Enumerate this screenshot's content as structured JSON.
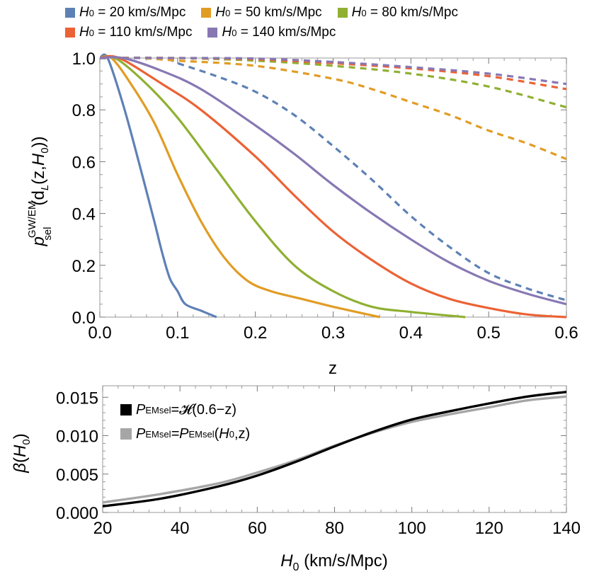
{
  "chart_data": [
    {
      "type": "line",
      "title": "",
      "xlabel": "z",
      "ylabel": "p_sel^{GW/EM}(d_L(z,H_0))",
      "xlim": [
        0.0,
        0.6
      ],
      "ylim": [
        0.0,
        1.0
      ],
      "xticks": [
        "0.0",
        "0.1",
        "0.2",
        "0.3",
        "0.4",
        "0.5",
        "0.6"
      ],
      "yticks": [
        "0.0",
        "0.2",
        "0.4",
        "0.6",
        "0.8",
        "1.0"
      ],
      "grid": false,
      "legend_position": "top (above plot)",
      "legend": [
        {
          "h0": "20",
          "unit": "km/s/Mpc",
          "color": "#5E81B5"
        },
        {
          "h0": "50",
          "unit": "km/s/Mpc",
          "color": "#E19C24"
        },
        {
          "h0": "80",
          "unit": "km/s/Mpc",
          "color": "#8FB032"
        },
        {
          "h0": "110",
          "unit": "km/s/Mpc",
          "color": "#EB6235"
        },
        {
          "h0": "140",
          "unit": "km/s/Mpc",
          "color": "#8778B3"
        }
      ],
      "series": [
        {
          "name": "H0 = 20 (solid, GW)",
          "color": "#5E81B5",
          "dashed": false,
          "points": [
            [
              0,
              1
            ],
            [
              0.01,
              1
            ],
            [
              0.03,
              0.82
            ],
            [
              0.05,
              0.6
            ],
            [
              0.07,
              0.37
            ],
            [
              0.08,
              0.25
            ],
            [
              0.09,
              0.15
            ],
            [
              0.1,
              0.1
            ],
            [
              0.11,
              0.05
            ],
            [
              0.13,
              0.025
            ],
            [
              0.15,
              0
            ]
          ]
        },
        {
          "name": "H0 = 50 (solid, GW)",
          "color": "#E19C24",
          "dashed": false,
          "points": [
            [
              0,
              1
            ],
            [
              0.015,
              1
            ],
            [
              0.04,
              0.9
            ],
            [
              0.07,
              0.75
            ],
            [
              0.1,
              0.55
            ],
            [
              0.13,
              0.37
            ],
            [
              0.16,
              0.23
            ],
            [
              0.19,
              0.14
            ],
            [
              0.22,
              0.1
            ],
            [
              0.26,
              0.07
            ],
            [
              0.3,
              0.04
            ],
            [
              0.36,
              0
            ]
          ]
        },
        {
          "name": "H0 = 80 (solid, GW)",
          "color": "#8FB032",
          "dashed": false,
          "points": [
            [
              0,
              1
            ],
            [
              0.02,
              1
            ],
            [
              0.06,
              0.9
            ],
            [
              0.1,
              0.77
            ],
            [
              0.15,
              0.57
            ],
            [
              0.2,
              0.37
            ],
            [
              0.25,
              0.2
            ],
            [
              0.3,
              0.1
            ],
            [
              0.35,
              0.04
            ],
            [
              0.4,
              0.02
            ],
            [
              0.47,
              0
            ]
          ]
        },
        {
          "name": "H0 = 110 (solid, GW)",
          "color": "#EB6235",
          "dashed": false,
          "points": [
            [
              0,
              1
            ],
            [
              0.025,
              1
            ],
            [
              0.08,
              0.9
            ],
            [
              0.13,
              0.8
            ],
            [
              0.2,
              0.62
            ],
            [
              0.25,
              0.47
            ],
            [
              0.3,
              0.33
            ],
            [
              0.35,
              0.22
            ],
            [
              0.4,
              0.13
            ],
            [
              0.45,
              0.07
            ],
            [
              0.5,
              0.035
            ],
            [
              0.55,
              0.01
            ],
            [
              0.6,
              0
            ]
          ]
        },
        {
          "name": "H0 = 140 (solid, GW)",
          "color": "#8778B3",
          "dashed": false,
          "points": [
            [
              0,
              1
            ],
            [
              0.03,
              1
            ],
            [
              0.08,
              0.95
            ],
            [
              0.13,
              0.88
            ],
            [
              0.2,
              0.74
            ],
            [
              0.25,
              0.63
            ],
            [
              0.3,
              0.51
            ],
            [
              0.35,
              0.4
            ],
            [
              0.4,
              0.3
            ],
            [
              0.45,
              0.21
            ],
            [
              0.5,
              0.14
            ],
            [
              0.55,
              0.09
            ],
            [
              0.6,
              0.05
            ]
          ]
        },
        {
          "name": "H0 = 20 (dashed, EM)",
          "color": "#5E81B5",
          "dashed": true,
          "points": [
            [
              0,
              1
            ],
            [
              0.08,
              1
            ],
            [
              0.1,
              0.98
            ],
            [
              0.15,
              0.93
            ],
            [
              0.2,
              0.87
            ],
            [
              0.25,
              0.78
            ],
            [
              0.3,
              0.66
            ],
            [
              0.35,
              0.53
            ],
            [
              0.4,
              0.39
            ],
            [
              0.45,
              0.27
            ],
            [
              0.5,
              0.17
            ],
            [
              0.55,
              0.11
            ],
            [
              0.6,
              0.065
            ]
          ]
        },
        {
          "name": "H0 = 50 (dashed, EM)",
          "color": "#E19C24",
          "dashed": true,
          "points": [
            [
              0,
              1
            ],
            [
              0.05,
              1
            ],
            [
              0.1,
              0.99
            ],
            [
              0.2,
              0.97
            ],
            [
              0.3,
              0.92
            ],
            [
              0.35,
              0.88
            ],
            [
              0.4,
              0.83
            ],
            [
              0.45,
              0.78
            ],
            [
              0.5,
              0.72
            ],
            [
              0.55,
              0.67
            ],
            [
              0.6,
              0.61
            ]
          ]
        },
        {
          "name": "H0 = 80 (dashed, EM)",
          "color": "#8FB032",
          "dashed": true,
          "points": [
            [
              0,
              1
            ],
            [
              0.1,
              1
            ],
            [
              0.2,
              0.99
            ],
            [
              0.3,
              0.97
            ],
            [
              0.4,
              0.94
            ],
            [
              0.5,
              0.89
            ],
            [
              0.6,
              0.81
            ]
          ]
        },
        {
          "name": "H0 = 110 (dashed, EM)",
          "color": "#EB6235",
          "dashed": true,
          "points": [
            [
              0,
              1
            ],
            [
              0.1,
              1
            ],
            [
              0.2,
              0.995
            ],
            [
              0.3,
              0.98
            ],
            [
              0.4,
              0.96
            ],
            [
              0.5,
              0.93
            ],
            [
              0.6,
              0.88
            ]
          ]
        },
        {
          "name": "H0 = 140 (dashed, EM)",
          "color": "#8778B3",
          "dashed": true,
          "points": [
            [
              0,
              1
            ],
            [
              0.1,
              1
            ],
            [
              0.2,
              0.998
            ],
            [
              0.3,
              0.985
            ],
            [
              0.4,
              0.965
            ],
            [
              0.5,
              0.94
            ],
            [
              0.6,
              0.9
            ]
          ]
        }
      ]
    },
    {
      "type": "line",
      "title": "",
      "xlabel": "H0 (km/s/Mpc)",
      "ylabel": "β(H0)",
      "xlim": [
        20,
        140
      ],
      "ylim": [
        0.0,
        0.0165
      ],
      "xticks": [
        "20",
        "40",
        "60",
        "80",
        "100",
        "120",
        "140"
      ],
      "yticks": [
        "0.000",
        "0.005",
        "0.010",
        "0.015"
      ],
      "grid": false,
      "legend_position": "top-left",
      "series": [
        {
          "name": "P^EM_sel = H(0.6−z)",
          "color": "#000000",
          "points": [
            [
              20,
              0.0008
            ],
            [
              35,
              0.0018
            ],
            [
              50,
              0.0034
            ],
            [
              60,
              0.0048
            ],
            [
              70,
              0.0066
            ],
            [
              80,
              0.0086
            ],
            [
              90,
              0.0105
            ],
            [
              100,
              0.0121
            ],
            [
              110,
              0.0132
            ],
            [
              120,
              0.0142
            ],
            [
              130,
              0.0151
            ],
            [
              140,
              0.0157
            ]
          ]
        },
        {
          "name": "P^EM_sel = P^EM_sel(H0,z)",
          "color": "#A6A6A6",
          "points": [
            [
              20,
              0.0013
            ],
            [
              35,
              0.0024
            ],
            [
              50,
              0.0038
            ],
            [
              60,
              0.0052
            ],
            [
              70,
              0.0068
            ],
            [
              80,
              0.0087
            ],
            [
              90,
              0.0104
            ],
            [
              100,
              0.0118
            ],
            [
              110,
              0.0128
            ],
            [
              120,
              0.0137
            ],
            [
              130,
              0.0146
            ],
            [
              140,
              0.0151
            ]
          ]
        }
      ]
    }
  ],
  "legend_top": {
    "items": [
      {
        "symbol": "H",
        "sub": "0",
        "text": " = 20 km/s/Mpc"
      },
      {
        "symbol": "H",
        "sub": "0",
        "text": " = 50 km/s/Mpc"
      },
      {
        "symbol": "H",
        "sub": "0",
        "text": " = 80 km/s/Mpc"
      },
      {
        "symbol": "H",
        "sub": "0",
        "text": " = 110 km/s/Mpc"
      },
      {
        "symbol": "H",
        "sub": "0",
        "text": " = 140 km/s/Mpc"
      }
    ]
  },
  "legend_bottom": {
    "items": [
      {
        "P": "P",
        "sup": "EM",
        "sub": "sel",
        "rhs": "=𝓗(0.6−z)"
      },
      {
        "P": "P",
        "sup": "EM",
        "sub": "sel",
        "rhs_P": "=P",
        "rhs_sup": "EM",
        "rhs_sub": "sel",
        "rhs_open": "(",
        "rhs_H": "H",
        "rhs_H_sub": "0",
        "rhs_close": ",z)"
      }
    ]
  },
  "labels": {
    "top_xlabel": "z",
    "top_ylabel_p": "p",
    "top_ylabel_sup": "GW/EM",
    "top_ylabel_sub": "sel",
    "top_ylabel_rest1": "(d",
    "top_ylabel_L": "L",
    "top_ylabel_rest2": "(z,",
    "top_ylabel_H": "H",
    "top_ylabel_0": "0",
    "top_ylabel_rest3": "))",
    "bottom_ylabel_beta": "β",
    "bottom_ylabel_open": "(",
    "bottom_ylabel_H": "H",
    "bottom_ylabel_0": "0",
    "bottom_ylabel_close": ")",
    "bottom_xlabel_H": "H",
    "bottom_xlabel_0": "0",
    "bottom_xlabel_rest": " (km/s/Mpc)"
  }
}
